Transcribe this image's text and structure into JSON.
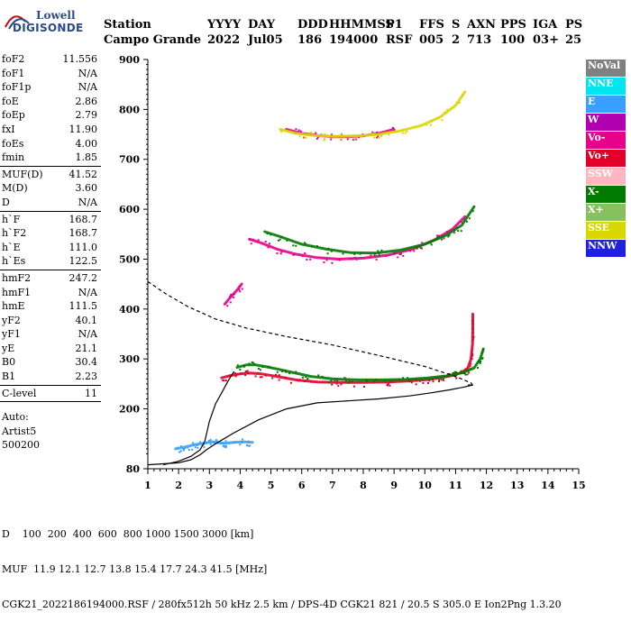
{
  "logo": {
    "line1": "Lowell",
    "line2": "DIGISONDE"
  },
  "header": {
    "labels": [
      "Station",
      "YYYY",
      "DAY",
      "DDD",
      "HHMMSS",
      "P1",
      "FFS",
      "S",
      "AXN",
      "PPS",
      "IGA",
      "PS"
    ],
    "values": [
      "Campo Grande",
      "2022",
      "Jul05",
      "186",
      "194000",
      "RSF",
      "005",
      "2",
      "713",
      "100",
      "03+",
      "25"
    ]
  },
  "sidebar": {
    "groups": [
      [
        {
          "k": "foF2",
          "v": "11.556"
        },
        {
          "k": "foF1",
          "v": "N/A"
        },
        {
          "k": "foF1p",
          "v": "N/A"
        },
        {
          "k": "foE",
          "v": "2.86"
        },
        {
          "k": "foEp",
          "v": "2.79"
        },
        {
          "k": "fxI",
          "v": "11.90"
        },
        {
          "k": "foEs",
          "v": "4.00"
        },
        {
          "k": "fmin",
          "v": "1.85"
        }
      ],
      [
        {
          "k": "MUF(D)",
          "v": "41.52"
        },
        {
          "k": "M(D)",
          "v": "3.60"
        },
        {
          "k": "D",
          "v": "N/A"
        }
      ],
      [
        {
          "k": "h`F",
          "v": "168.7"
        },
        {
          "k": "h`F2",
          "v": "168.7"
        },
        {
          "k": "h`E",
          "v": "111.0"
        },
        {
          "k": "h`Es",
          "v": "122.5"
        }
      ],
      [
        {
          "k": "hmF2",
          "v": "247.2"
        },
        {
          "k": "hmF1",
          "v": "N/A"
        },
        {
          "k": "hmE",
          "v": "111.5"
        },
        {
          "k": "yF2",
          "v": "40.1"
        },
        {
          "k": "yF1",
          "v": "N/A"
        },
        {
          "k": "yE",
          "v": "21.1"
        },
        {
          "k": "B0",
          "v": "30.4"
        },
        {
          "k": "B1",
          "v": "2.23"
        }
      ],
      [
        {
          "k": "C-level",
          "v": "11"
        }
      ]
    ],
    "auto": [
      "Auto:",
      "Artist5",
      "500200"
    ]
  },
  "legend": [
    {
      "label": "NoVal",
      "color": "#808080"
    },
    {
      "label": "NNE",
      "color": "#00e5ee"
    },
    {
      "label": "E",
      "color": "#3aa0ff"
    },
    {
      "label": "W",
      "color": "#b000b0"
    },
    {
      "label": "Vo-",
      "color": "#e8008a"
    },
    {
      "label": "Vo+",
      "color": "#e0002a"
    },
    {
      "label": "SSW",
      "color": "#ffb6c1"
    },
    {
      "label": "X-",
      "color": "#007a00"
    },
    {
      "label": "X+",
      "color": "#88c060"
    },
    {
      "label": "SSE",
      "color": "#d8d800"
    },
    {
      "label": "NNW",
      "color": "#2020e0"
    }
  ],
  "footer": {
    "line1": "D    100  200  400  600  800 1000 1500 3000 [km]",
    "line2": "MUF  11.9 12.1 12.7 13.8 15.4 17.7 24.3 41.5 [MHz]",
    "line3": "CGK21_2022186194000.RSF / 280fx512h 50 kHz 2.5 km / DPS-4D CGK21 821 / 20.5 S 305.0 E Ion2Png 1.3.20"
  },
  "chart_data": {
    "type": "scatter",
    "xlabel": "",
    "ylabel": "",
    "xlim": [
      1,
      15
    ],
    "ylim": [
      80,
      900
    ],
    "x_ticks": [
      1,
      2,
      3,
      4,
      5,
      6,
      7,
      8,
      9,
      10,
      11,
      12,
      13,
      14,
      15
    ],
    "y_ticks": [
      80,
      200,
      300,
      400,
      500,
      600,
      700,
      800,
      900
    ],
    "grid": false,
    "legend_position": "right",
    "series": [
      {
        "name": "Vo+",
        "color": "#e0002a",
        "kind": "echo",
        "x": [
          3.4,
          3.7,
          4.0,
          4.3,
          4.7,
          5.2,
          5.8,
          6.5,
          7.2,
          8.0,
          8.8,
          9.5,
          10.0,
          10.5,
          10.9,
          11.2,
          11.4,
          11.5,
          11.55,
          11.56,
          11.56
        ],
        "y": [
          262,
          267,
          270,
          272,
          270,
          265,
          258,
          254,
          253,
          253,
          254,
          256,
          258,
          262,
          267,
          273,
          282,
          300,
          330,
          360,
          390
        ]
      },
      {
        "name": "X-",
        "color": "#007a00",
        "kind": "echo",
        "x": [
          3.9,
          4.2,
          4.5,
          4.8,
          5.2,
          5.7,
          6.3,
          7.0,
          7.8,
          8.6,
          9.4,
          10.1,
          10.7,
          11.2,
          11.6,
          11.8,
          11.9
        ],
        "y": [
          283,
          288,
          288,
          285,
          280,
          273,
          265,
          260,
          258,
          258,
          259,
          262,
          266,
          272,
          282,
          300,
          320
        ]
      },
      {
        "name": "Vo- (2nd hop)",
        "color": "#e8008a",
        "kind": "echo",
        "x": [
          4.3,
          4.7,
          5.2,
          5.8,
          6.5,
          7.2,
          8.0,
          8.8,
          9.6,
          10.3,
          10.9,
          11.3
        ],
        "y": [
          540,
          532,
          520,
          510,
          503,
          500,
          502,
          508,
          520,
          538,
          560,
          585
        ]
      },
      {
        "name": "X- (2nd hop)",
        "color": "#007a00",
        "kind": "echo",
        "x": [
          4.8,
          5.3,
          6.0,
          6.8,
          7.6,
          8.4,
          9.2,
          10.0,
          10.7,
          11.2,
          11.6
        ],
        "y": [
          555,
          545,
          530,
          520,
          513,
          512,
          518,
          530,
          548,
          568,
          605
        ]
      },
      {
        "name": "Vo- (3rd hop)",
        "color": "#e8008a",
        "kind": "echo",
        "x": [
          5.5,
          6.0,
          6.5,
          7.0,
          7.5,
          8.0,
          8.5,
          9.0
        ],
        "y": [
          760,
          752,
          748,
          745,
          745,
          747,
          752,
          760
        ]
      },
      {
        "name": "SSE (3rd hop)",
        "color": "#d8d800",
        "kind": "echo",
        "x": [
          5.3,
          5.8,
          6.4,
          7.1,
          7.8,
          8.5,
          9.2,
          9.9,
          10.5,
          11.0,
          11.3
        ],
        "y": [
          760,
          752,
          748,
          746,
          747,
          750,
          757,
          768,
          785,
          808,
          835
        ]
      },
      {
        "name": "E-layer traces",
        "color": "#3aa0ff",
        "kind": "echo",
        "x": [
          1.9,
          2.1,
          2.3,
          2.5,
          2.7,
          2.9,
          3.1,
          3.3,
          3.5,
          3.8,
          4.1,
          4.4
        ],
        "y": [
          120,
          122,
          125,
          128,
          130,
          132,
          134,
          132,
          131,
          133,
          134,
          133
        ]
      },
      {
        "name": "Es trace",
        "color": "#e8008a",
        "kind": "echo",
        "x": [
          3.5,
          3.7,
          3.9,
          4.05
        ],
        "y": [
          410,
          425,
          438,
          450
        ]
      },
      {
        "name": "Profile",
        "color": "#000000",
        "kind": "line",
        "x": [
          1.0,
          1.5,
          2.0,
          2.4,
          2.7,
          2.9,
          3.2,
          3.8,
          4.6,
          5.5,
          6.5,
          7.5,
          8.5,
          9.5,
          10.2,
          10.8,
          11.3,
          11.5,
          11.56,
          11.4
        ],
        "y": [
          88,
          90,
          92,
          98,
          108,
          118,
          130,
          152,
          178,
          200,
          212,
          216,
          220,
          226,
          232,
          238,
          244,
          247,
          247.2,
          248
        ]
      },
      {
        "name": "Profile (foE)",
        "color": "#000000",
        "kind": "line",
        "x": [
          1.5,
          2.0,
          2.4,
          2.7,
          2.85
        ],
        "y": [
          88,
          95,
          105,
          118,
          135
        ]
      },
      {
        "name": "Profile (h`F)",
        "color": "#000000",
        "kind": "line",
        "x": [
          2.85,
          3.0,
          3.2,
          3.4,
          3.6,
          3.8
        ],
        "y": [
          135,
          175,
          210,
          232,
          255,
          275
        ]
      },
      {
        "name": "MUF(D) (dashed)",
        "color": "#000000",
        "kind": "dashed",
        "x": [
          1.0,
          1.6,
          2.3,
          3.2,
          4.2,
          5.5,
          7.0,
          8.5,
          10.0,
          11.0,
          11.5,
          11.56
        ],
        "y": [
          455,
          430,
          405,
          380,
          362,
          345,
          328,
          307,
          285,
          265,
          252,
          247
        ]
      }
    ]
  }
}
